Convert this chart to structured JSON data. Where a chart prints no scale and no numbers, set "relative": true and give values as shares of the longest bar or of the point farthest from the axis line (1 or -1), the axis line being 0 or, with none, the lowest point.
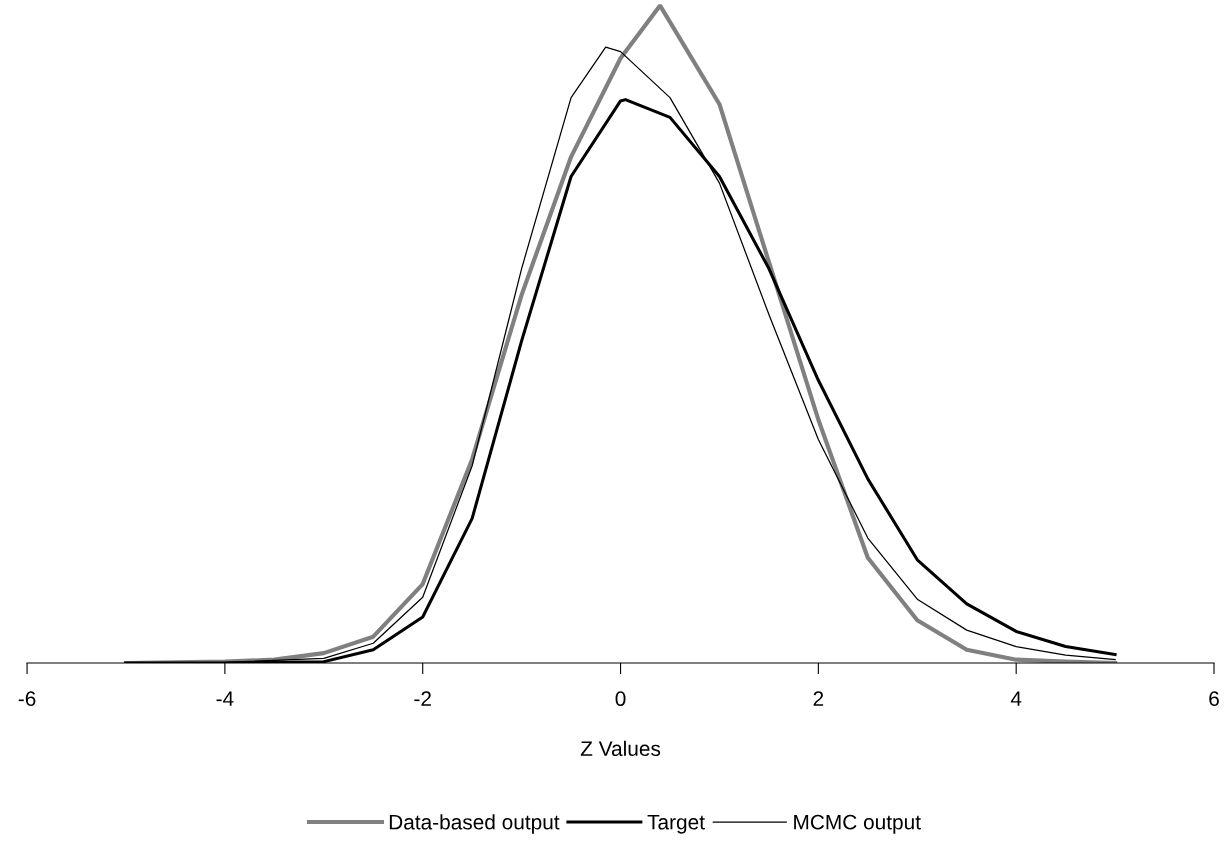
{
  "chart_data": {
    "type": "line",
    "xlabel": "Z Values",
    "relative": true,
    "xlim": [
      -6,
      6
    ],
    "xticks": [
      -6,
      -4,
      -2,
      0,
      2,
      4,
      6
    ],
    "grid": false,
    "legend": "bottom",
    "marker": "none",
    "line_style": "solid",
    "series": [
      {
        "name": "Data-based output",
        "color": "#808080",
        "x": [
          -5,
          -4,
          -3.5,
          -3,
          -2.5,
          -2,
          -1.5,
          -1,
          -0.5,
          0,
          0.4,
          1,
          1.5,
          2,
          2.5,
          3,
          3.5,
          4,
          4.5,
          5
        ],
        "values": [
          0,
          0.002,
          0.005,
          0.015,
          0.04,
          0.12,
          0.31,
          0.56,
          0.77,
          0.92,
          1.0,
          0.85,
          0.61,
          0.37,
          0.16,
          0.065,
          0.02,
          0.005,
          0.002,
          0
        ]
      },
      {
        "name": "Target",
        "color": "#000000",
        "x": [
          -5,
          -4,
          -3,
          -2.5,
          -2,
          -1.5,
          -1,
          -0.5,
          0,
          0.05,
          0.5,
          1,
          1.5,
          2,
          2.5,
          3,
          3.5,
          4,
          4.5,
          5
        ],
        "values": [
          0,
          0,
          0.002,
          0.02,
          0.07,
          0.22,
          0.49,
          0.74,
          0.855,
          0.857,
          0.83,
          0.74,
          0.6,
          0.43,
          0.28,
          0.157,
          0.09,
          0.048,
          0.025,
          0.013
        ]
      },
      {
        "name": "MCMC output",
        "color": "#000000",
        "x": [
          -5,
          -4,
          -3,
          -2.5,
          -2,
          -1.5,
          -1,
          -0.5,
          -0.15,
          0,
          0.5,
          1,
          1.5,
          2,
          2.5,
          3,
          3.5,
          4,
          4.5,
          5
        ],
        "values": [
          0,
          0.001,
          0.007,
          0.03,
          0.1,
          0.3,
          0.6,
          0.86,
          0.937,
          0.93,
          0.86,
          0.73,
          0.53,
          0.34,
          0.19,
          0.097,
          0.05,
          0.025,
          0.012,
          0.005
        ]
      }
    ]
  }
}
